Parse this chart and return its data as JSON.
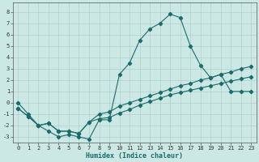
{
  "xlabel": "Humidex (Indice chaleur)",
  "bg_color": "#cce8e4",
  "grid_color": "#b0cfcc",
  "line_color": "#1a6b6b",
  "xlim": [
    -0.5,
    23.5
  ],
  "ylim": [
    -3.5,
    8.8
  ],
  "yticks": [
    -3,
    -2,
    -1,
    0,
    1,
    2,
    3,
    4,
    5,
    6,
    7,
    8
  ],
  "xticks": [
    0,
    1,
    2,
    3,
    4,
    5,
    6,
    7,
    8,
    9,
    10,
    11,
    12,
    13,
    14,
    15,
    16,
    17,
    18,
    19,
    20,
    21,
    22,
    23
  ],
  "line1_x": [
    0,
    1,
    2,
    3,
    4,
    5,
    6,
    7,
    8,
    9,
    10,
    11,
    12,
    13,
    14,
    15,
    16,
    17,
    18,
    19,
    20,
    21,
    22,
    23
  ],
  "line1_y": [
    0.0,
    -1.0,
    -2.0,
    -2.5,
    -3.0,
    -2.8,
    -3.0,
    -3.2,
    -1.5,
    -1.5,
    2.5,
    3.5,
    5.5,
    6.5,
    7.0,
    7.8,
    7.5,
    5.0,
    3.3,
    2.2,
    2.5,
    1.0,
    1.0,
    1.0
  ],
  "line2_x": [
    0,
    1,
    2,
    3,
    4,
    5,
    6,
    7,
    8,
    9,
    10,
    11,
    12,
    13,
    14,
    15,
    16,
    17,
    18,
    19,
    20,
    21,
    22,
    23
  ],
  "line2_y": [
    -0.5,
    -1.2,
    -2.0,
    -1.8,
    -2.5,
    -2.5,
    -2.7,
    -1.7,
    -1.4,
    -1.3,
    -0.9,
    -0.6,
    -0.2,
    0.1,
    0.4,
    0.7,
    0.9,
    1.1,
    1.3,
    1.5,
    1.7,
    1.9,
    2.1,
    2.3
  ],
  "line3_x": [
    0,
    1,
    2,
    3,
    4,
    5,
    6,
    7,
    8,
    9,
    10,
    11,
    12,
    13,
    14,
    15,
    16,
    17,
    18,
    19,
    20,
    21,
    22,
    23
  ],
  "line3_y": [
    -0.5,
    -1.2,
    -2.0,
    -1.8,
    -2.5,
    -2.5,
    -2.7,
    -1.7,
    -1.0,
    -0.8,
    -0.3,
    0.0,
    0.3,
    0.6,
    0.9,
    1.2,
    1.5,
    1.7,
    2.0,
    2.2,
    2.5,
    2.7,
    3.0,
    3.2
  ],
  "xlabel_fontsize": 6.0,
  "tick_fontsize": 5.0
}
